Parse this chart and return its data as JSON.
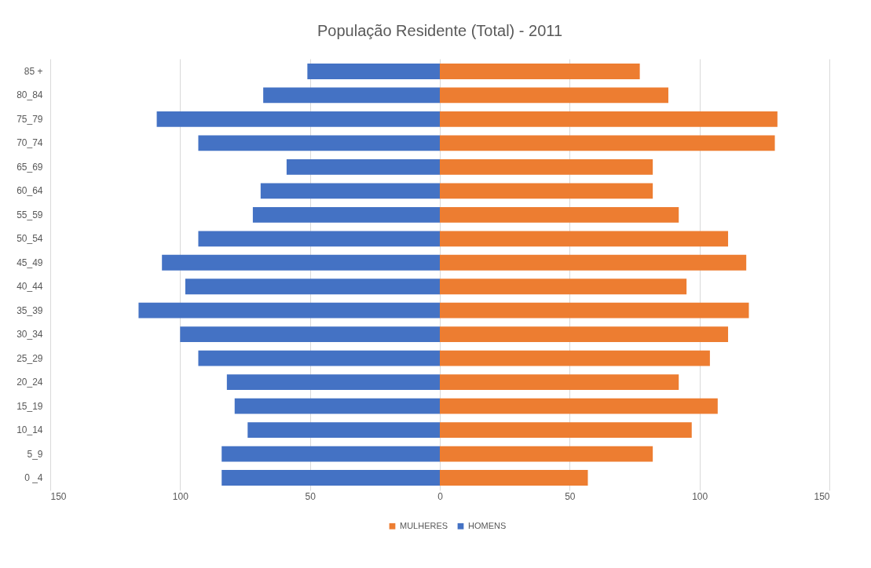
{
  "chart_data": {
    "type": "bar",
    "orientation": "horizontal",
    "stacked": true,
    "title": "População Residente (Total) - 2011",
    "categories": [
      "85 +",
      "80_84",
      "75_79",
      "70_74",
      "65_69",
      "60_64",
      "55_59",
      "50_54",
      "45_49",
      "40_44",
      "35_39",
      "30_34",
      "25_29",
      "20_24",
      "15_19",
      "10_14",
      "5_9",
      "0 _4"
    ],
    "series": [
      {
        "name": "MULHERES",
        "color": "#ed7d31",
        "values": [
          77,
          88,
          130,
          129,
          82,
          82,
          92,
          111,
          118,
          95,
          119,
          111,
          104,
          92,
          107,
          97,
          82,
          57
        ]
      },
      {
        "name": "HOMENS",
        "color": "#4472c4",
        "values": [
          -51,
          -68,
          -109,
          -93,
          -59,
          -69,
          -72,
          -93,
          -107,
          -98,
          -116,
          -100,
          -93,
          -82,
          -79,
          -74,
          -84,
          -84
        ]
      }
    ],
    "xlim": [
      -150,
      150
    ],
    "xticks": [
      {
        "value": -150,
        "label": "150"
      },
      {
        "value": -100,
        "label": "100"
      },
      {
        "value": -50,
        "label": "50"
      },
      0,
      50,
      100,
      150
    ],
    "grid": "x",
    "legend": "bottom"
  }
}
